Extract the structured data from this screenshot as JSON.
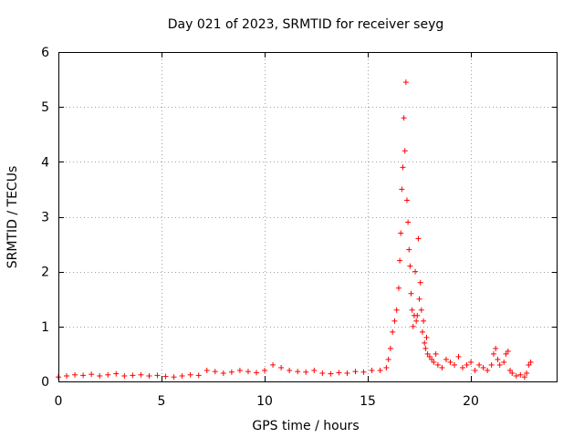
{
  "chart_data": {
    "type": "scatter",
    "title": "Day 021 of 2023, SRMTID for receiver seyg",
    "xlabel": "GPS time / hours",
    "ylabel": "SRMTID / TECUs",
    "xlim": [
      0,
      24.2
    ],
    "ylim": [
      0,
      6
    ],
    "xticks": [
      0,
      5,
      10,
      15,
      20
    ],
    "xtick_labels": [
      "0",
      "5",
      "10",
      "15",
      "20"
    ],
    "yticks": [
      0,
      1,
      2,
      3,
      4,
      5,
      6
    ],
    "ytick_labels": [
      "0",
      "1",
      "2",
      "3",
      "4",
      "5",
      "6"
    ],
    "grid": true,
    "marker": "+",
    "color": "#ff0000",
    "series": [
      {
        "name": "SRMTID",
        "x": [
          0.0,
          0.4,
          0.8,
          1.2,
          1.6,
          2.0,
          2.4,
          2.8,
          3.2,
          3.6,
          4.0,
          4.4,
          4.8,
          5.2,
          5.6,
          6.0,
          6.4,
          6.8,
          7.2,
          7.6,
          8.0,
          8.4,
          8.8,
          9.2,
          9.6,
          10.0,
          10.4,
          10.8,
          11.2,
          11.6,
          12.0,
          12.4,
          12.8,
          13.2,
          13.6,
          14.0,
          14.4,
          14.8,
          15.2,
          15.6,
          15.9,
          16.0,
          16.1,
          16.2,
          16.3,
          16.4,
          16.5,
          16.55,
          16.6,
          16.65,
          16.7,
          16.75,
          16.8,
          16.85,
          16.9,
          16.95,
          17.0,
          17.05,
          17.1,
          17.15,
          17.2,
          17.25,
          17.3,
          17.35,
          17.4,
          17.45,
          17.5,
          17.55,
          17.6,
          17.65,
          17.7,
          17.75,
          17.8,
          17.85,
          17.9,
          18.0,
          18.1,
          18.2,
          18.3,
          18.4,
          18.6,
          18.8,
          19.0,
          19.2,
          19.4,
          19.6,
          19.8,
          20.0,
          20.2,
          20.4,
          20.6,
          20.8,
          21.0,
          21.1,
          21.2,
          21.3,
          21.4,
          21.6,
          21.7,
          21.8,
          21.9,
          22.0,
          22.2,
          22.4,
          22.6,
          22.7,
          22.8,
          22.9
        ],
        "y": [
          0.08,
          0.1,
          0.12,
          0.11,
          0.13,
          0.1,
          0.12,
          0.14,
          0.1,
          0.11,
          0.12,
          0.1,
          0.11,
          0.09,
          0.08,
          0.1,
          0.12,
          0.11,
          0.2,
          0.18,
          0.15,
          0.17,
          0.2,
          0.18,
          0.16,
          0.2,
          0.3,
          0.25,
          0.2,
          0.18,
          0.17,
          0.2,
          0.15,
          0.14,
          0.16,
          0.15,
          0.18,
          0.17,
          0.2,
          0.2,
          0.25,
          0.4,
          0.6,
          0.9,
          1.1,
          1.3,
          1.7,
          2.2,
          2.7,
          3.5,
          3.9,
          4.8,
          4.2,
          5.45,
          3.3,
          2.9,
          2.4,
          2.1,
          1.6,
          1.3,
          1.0,
          1.2,
          2.0,
          1.1,
          1.2,
          2.6,
          1.5,
          1.8,
          1.3,
          0.9,
          1.1,
          0.7,
          0.6,
          0.8,
          0.5,
          0.45,
          0.4,
          0.35,
          0.5,
          0.3,
          0.25,
          0.4,
          0.35,
          0.3,
          0.45,
          0.25,
          0.3,
          0.35,
          0.2,
          0.3,
          0.25,
          0.2,
          0.3,
          0.5,
          0.6,
          0.4,
          0.3,
          0.35,
          0.5,
          0.55,
          0.2,
          0.15,
          0.1,
          0.12,
          0.08,
          0.15,
          0.3,
          0.35
        ]
      }
    ]
  }
}
